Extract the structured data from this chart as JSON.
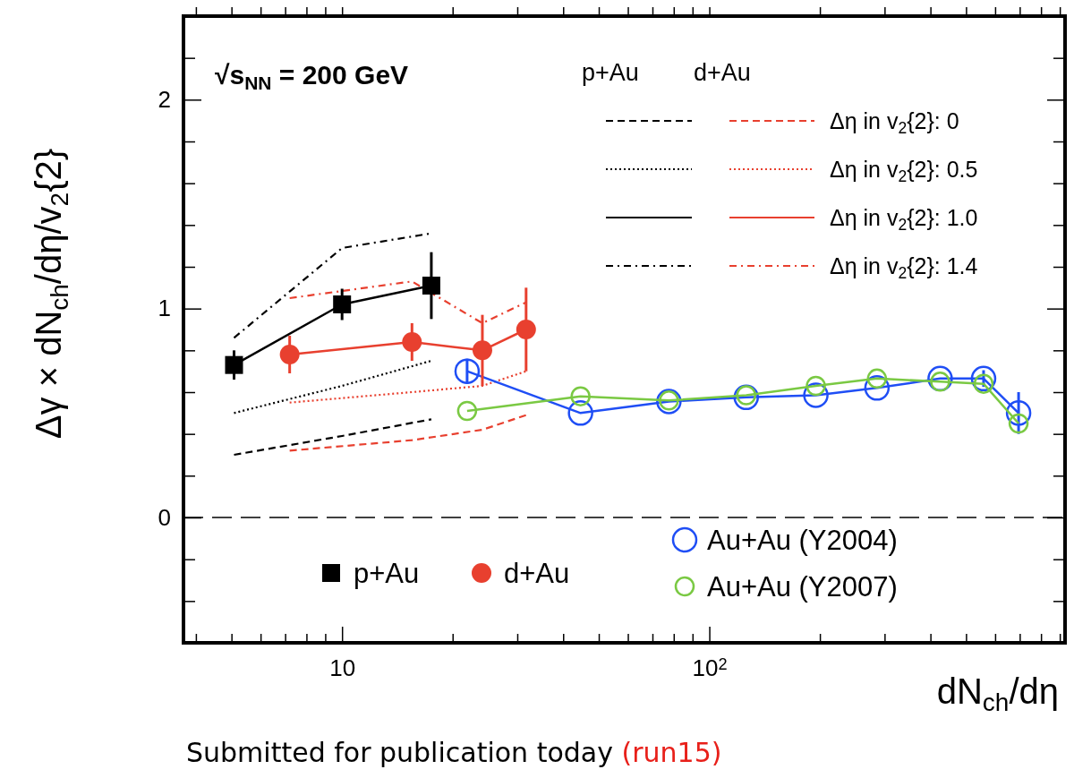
{
  "chart_data": {
    "type": "line",
    "xlabel": "dN$_{ch}$/dη",
    "ylabel": "Δγ × dN$_{ch}$/dη/v$_{2}${2}",
    "log": "x",
    "xlim": [
      3.7,
      930
    ],
    "ylim": [
      -0.6,
      2.4
    ],
    "xticks": [
      {
        "value": 4,
        "label": null
      },
      {
        "value": 5,
        "label": null
      },
      {
        "value": 6,
        "label": null
      },
      {
        "value": 7,
        "label": null
      },
      {
        "value": 8,
        "label": null
      },
      {
        "value": 9,
        "label": null
      },
      10,
      {
        "value": 20,
        "label": null
      },
      {
        "value": 30,
        "label": null
      },
      {
        "value": 40,
        "label": null
      },
      {
        "value": 50,
        "label": null
      },
      {
        "value": 60,
        "label": null
      },
      {
        "value": 70,
        "label": null
      },
      {
        "value": 80,
        "label": null
      },
      {
        "value": 90,
        "label": null
      },
      {
        "value": 100,
        "label": "10$^{2}$"
      },
      {
        "value": 200,
        "label": null
      },
      {
        "value": 300,
        "label": null
      },
      {
        "value": 400,
        "label": null
      },
      {
        "value": 500,
        "label": null
      },
      {
        "value": 600,
        "label": null
      },
      {
        "value": 700,
        "label": null
      },
      {
        "value": 800,
        "label": null
      },
      {
        "value": 900,
        "label": null
      }
    ],
    "yticks": [
      {
        "value": -0.4,
        "label": null
      },
      {
        "value": -0.2,
        "label": null
      },
      0,
      {
        "value": 0.2,
        "label": null
      },
      {
        "value": 0.4,
        "label": null
      },
      {
        "value": 0.6,
        "label": null
      },
      {
        "value": 0.8,
        "label": null
      },
      1,
      {
        "value": 1.2,
        "label": null
      },
      {
        "value": 1.4,
        "label": null
      },
      {
        "value": 1.6,
        "label": null
      },
      {
        "value": 1.8,
        "label": null
      },
      2,
      {
        "value": 2.2,
        "label": null
      }
    ],
    "grid": false,
    "legend": "right",
    "ref_lines": [
      {
        "axis": "y",
        "value": 0,
        "line_style": "dashed",
        "color": "#000000"
      }
    ],
    "annotations": [
      "√s$_{NN}$ = 200 GeV",
      "Submitted for publication today",
      "(run15)"
    ],
    "series": [
      {
        "name": "p+Au",
        "type": "scatter",
        "marker": "square",
        "color": "#000000",
        "x": [
          5.08,
          10,
          17.5
        ],
        "values": [
          0.73,
          1.02,
          1.11
        ],
        "errors": [
          0.07,
          0.075,
          0.16
        ]
      },
      {
        "name": "d+Au",
        "type": "scatter",
        "marker": "circle",
        "color": "#e8402f",
        "x": [
          7.2,
          15.5,
          24.1,
          31.7
        ],
        "values": [
          0.78,
          0.84,
          0.8,
          0.9
        ],
        "errors": [
          0.09,
          0.09,
          0.17,
          0.2
        ]
      },
      {
        "name": "Au+Au (Y2004)",
        "marker": "circle",
        "line_style": "solid",
        "color": "#1f4ef5",
        "x": [
          21.9,
          44.6,
          77.6,
          126,
          195,
          286,
          425,
          558,
          695
        ],
        "values": [
          0.7,
          0.5,
          0.555,
          0.575,
          0.585,
          0.62,
          0.665,
          0.665,
          0.5
        ],
        "errors": [
          0.06,
          null,
          null,
          null,
          null,
          null,
          null,
          0.04,
          0.1
        ]
      },
      {
        "name": "Au+Au (Y2007)",
        "marker": "circle",
        "line_style": "solid",
        "color": "#7ac943",
        "x": [
          21.9,
          44.6,
          77.6,
          126,
          195,
          286,
          425,
          558,
          695
        ],
        "values": [
          0.51,
          0.58,
          0.56,
          0.585,
          0.63,
          0.665,
          0.65,
          0.64,
          0.45
        ]
      },
      {
        "type": "line",
        "marker": "none",
        "line_style": "dashed",
        "color": "#000000",
        "x": [
          5.08,
          10,
          17.5
        ],
        "values": [
          0.3,
          0.39,
          0.47
        ]
      },
      {
        "type": "line",
        "marker": "none",
        "line_style": "dotted",
        "color": "#000000",
        "x": [
          5.08,
          10,
          17.5
        ],
        "values": [
          0.5,
          0.63,
          0.75
        ]
      },
      {
        "type": "line",
        "marker": "none",
        "line_style": "solid",
        "color": "#000000",
        "x": [
          5.08,
          10,
          17.5
        ],
        "values": [
          0.73,
          1.02,
          1.11
        ]
      },
      {
        "type": "line",
        "marker": "none",
        "line_style": "dashdot",
        "color": "#000000",
        "x": [
          5.08,
          10,
          17.5
        ],
        "values": [
          0.86,
          1.29,
          1.36
        ]
      },
      {
        "name": "Δη in v$_{2}${2}: 0",
        "type": "line",
        "marker": "none",
        "line_style": "dashed",
        "color": "#e8402f",
        "x": [
          7.2,
          15.5,
          24.1,
          31.7
        ],
        "values": [
          0.32,
          0.37,
          0.42,
          0.49
        ]
      },
      {
        "name": "Δη in v$_{2}${2}: 0.5",
        "type": "line",
        "marker": "none",
        "line_style": "dotted",
        "color": "#e8402f",
        "x": [
          7.2,
          15.5,
          24.1,
          31.7
        ],
        "values": [
          0.55,
          0.6,
          0.63,
          0.7
        ]
      },
      {
        "name": "Δη in v$_{2}${2}: 1.0",
        "type": "line",
        "marker": "none",
        "line_style": "solid",
        "color": "#e8402f",
        "x": [
          7.2,
          15.5,
          24.1,
          31.7
        ],
        "values": [
          0.78,
          0.84,
          0.8,
          0.9
        ]
      },
      {
        "name": "Δη in v$_{2}${2}: 1.4",
        "type": "line",
        "marker": "none",
        "line_style": "dashdot",
        "color": "#e8402f",
        "x": [
          7.2,
          15.5,
          24.1,
          31.7
        ],
        "values": [
          1.05,
          1.13,
          0.93,
          1.03
        ]
      }
    ]
  }
}
